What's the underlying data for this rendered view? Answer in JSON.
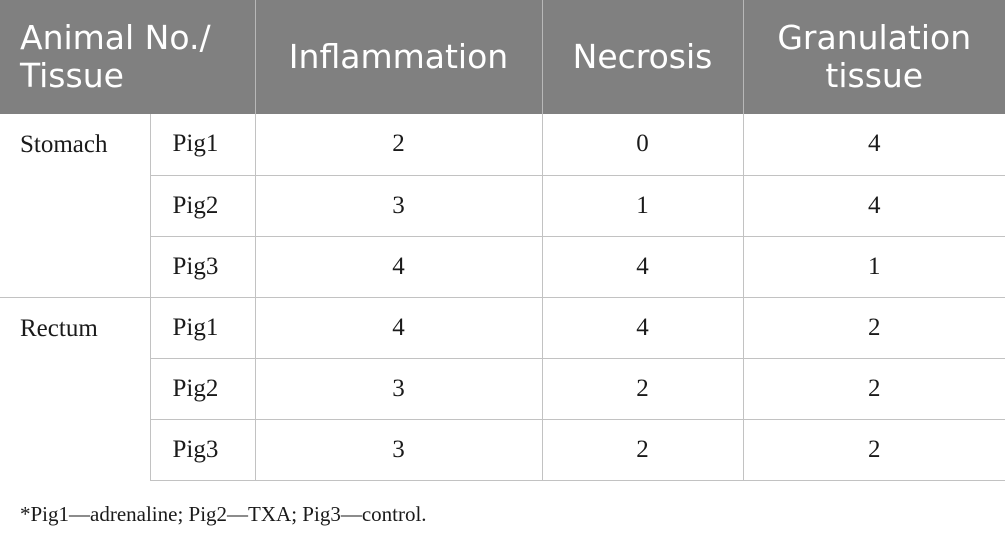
{
  "table": {
    "header": {
      "animal_tissue": "Animal No./ Tissue",
      "inflammation": "Inflammation",
      "necrosis": "Necrosis",
      "granulation": "Granulation tissue"
    },
    "groups": [
      {
        "tissue": "Stomach",
        "rows": [
          {
            "animal": "Pig1",
            "inflammation": "2",
            "necrosis": "0",
            "granulation": "4"
          },
          {
            "animal": "Pig2",
            "inflammation": "3",
            "necrosis": "1",
            "granulation": "4"
          },
          {
            "animal": "Pig3",
            "inflammation": "4",
            "necrosis": "4",
            "granulation": "1"
          }
        ]
      },
      {
        "tissue": "Rectum",
        "rows": [
          {
            "animal": "Pig1",
            "inflammation": "4",
            "necrosis": "4",
            "granulation": "2"
          },
          {
            "animal": "Pig2",
            "inflammation": "3",
            "necrosis": "2",
            "granulation": "2"
          },
          {
            "animal": "Pig3",
            "inflammation": "3",
            "necrosis": "2",
            "granulation": "2"
          }
        ]
      }
    ]
  },
  "footnote": "*Pig1—adrenaline; Pig2—TXA; Pig3—control."
}
